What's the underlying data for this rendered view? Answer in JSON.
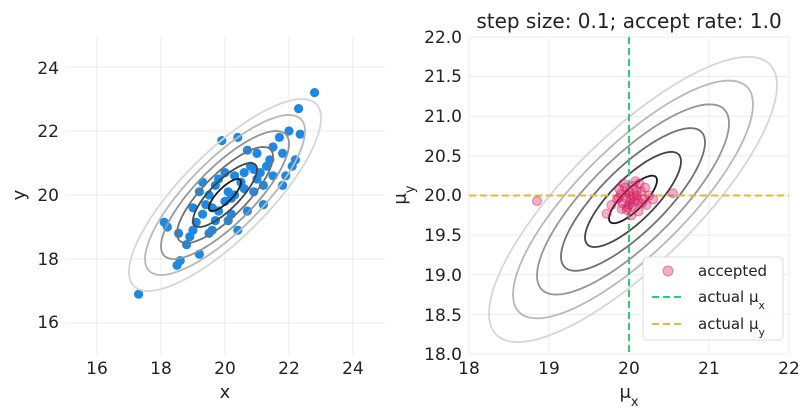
{
  "colors": {
    "scatter": "#1e88e5",
    "accepted": "#d81b60",
    "actual_mu_x": "#2ecc71",
    "actual_mu_y": "#e6b830",
    "contour_levels": [
      "#1a1a1a",
      "#444444",
      "#707070",
      "#959595",
      "#b8b8b8",
      "#d6d6d6"
    ]
  },
  "chart_data": [
    {
      "type": "scatter",
      "title": "",
      "xlabel": "x",
      "ylabel": "y",
      "xlim": [
        15,
        25
      ],
      "ylim": [
        15,
        25
      ],
      "xticks": [
        16,
        18,
        20,
        22,
        24
      ],
      "yticks": [
        16,
        18,
        20,
        22,
        24
      ],
      "xtick_labels": [
        "16",
        "18",
        "20",
        "22",
        "24"
      ],
      "ytick_labels": [
        "16",
        "18",
        "20",
        "22",
        "24"
      ],
      "contours": {
        "center": [
          20,
          20
        ],
        "sd_x": 1,
        "sd_y": 1,
        "rho": 0.8,
        "levels": [
          0.5,
          1,
          1.5,
          2,
          2.5,
          3
        ]
      },
      "points": [
        [
          17.3,
          16.9
        ],
        [
          18.5,
          17.8
        ],
        [
          18.6,
          17.95
        ],
        [
          18.1,
          19.15
        ],
        [
          18.2,
          19.0
        ],
        [
          18.55,
          18.8
        ],
        [
          18.8,
          18.45
        ],
        [
          19.2,
          18.15
        ],
        [
          19.0,
          18.9
        ],
        [
          19.1,
          19.15
        ],
        [
          19.3,
          19.4
        ],
        [
          19.4,
          19.7
        ],
        [
          19.5,
          20.0
        ],
        [
          19.6,
          19.6
        ],
        [
          19.7,
          20.3
        ],
        [
          19.8,
          20.5
        ],
        [
          19.9,
          21.7
        ],
        [
          19.5,
          18.8
        ],
        [
          19.7,
          19.2
        ],
        [
          20.0,
          19.8
        ],
        [
          20.1,
          20.1
        ],
        [
          20.2,
          19.9
        ],
        [
          20.3,
          20.6
        ],
        [
          20.4,
          21.8
        ],
        [
          20.5,
          20.4
        ],
        [
          20.6,
          20.2
        ],
        [
          20.7,
          19.5
        ],
        [
          20.8,
          20.9
        ],
        [
          20.9,
          20.8
        ],
        [
          21.0,
          20.5
        ],
        [
          21.1,
          20.7
        ],
        [
          21.2,
          19.7
        ],
        [
          21.3,
          20.9
        ],
        [
          21.4,
          21.1
        ],
        [
          21.5,
          20.6
        ],
        [
          21.7,
          21.8
        ],
        [
          21.8,
          21.3
        ],
        [
          22.0,
          22.0
        ],
        [
          22.1,
          20.9
        ],
        [
          22.2,
          21.1
        ],
        [
          22.3,
          22.7
        ],
        [
          22.35,
          21.9
        ],
        [
          22.8,
          23.2
        ],
        [
          21.9,
          20.6
        ],
        [
          21.8,
          20.3
        ],
        [
          20.4,
          18.9
        ],
        [
          20.1,
          19.2
        ],
        [
          19.2,
          20.1
        ],
        [
          19.0,
          19.6
        ],
        [
          20.3,
          20.0
        ],
        [
          20.6,
          20.7
        ],
        [
          21.0,
          21.3
        ],
        [
          19.8,
          19.5
        ],
        [
          20.9,
          20.1
        ],
        [
          18.9,
          18.7
        ],
        [
          19.6,
          18.9
        ],
        [
          20.7,
          21.4
        ],
        [
          21.5,
          21.5
        ],
        [
          19.3,
          20.4
        ],
        [
          20.0,
          20.7
        ],
        [
          20.2,
          19.4
        ],
        [
          21.2,
          20.3
        ]
      ]
    },
    {
      "type": "scatter",
      "title": "step size: 0.1; accept rate: 1.0",
      "xlabel": "μ_x",
      "ylabel": "μ_y",
      "xlim": [
        18,
        22
      ],
      "ylim": [
        18,
        22
      ],
      "xticks": [
        18,
        19,
        20,
        21,
        22
      ],
      "yticks": [
        18.0,
        18.5,
        19.0,
        19.5,
        20.0,
        20.5,
        21.0,
        21.5,
        22.0
      ],
      "xtick_labels": [
        "18",
        "19",
        "20",
        "21",
        "22"
      ],
      "ytick_labels": [
        "18.0",
        "18.5",
        "19.0",
        "19.5",
        "20.0",
        "20.5",
        "21.0",
        "21.5",
        "22.0"
      ],
      "contours": {
        "center": [
          20.05,
          19.95
        ],
        "sd_x": 0.6,
        "sd_y": 0.6,
        "rho": 0.8,
        "levels": [
          0.5,
          1,
          1.5,
          2,
          2.5,
          3
        ]
      },
      "reference_lines": {
        "actual_mu_x": 20.0,
        "actual_mu_y": 20.0
      },
      "legend": {
        "position": "bottom-right",
        "entries": [
          "accepted",
          "actual $\\mu_x$",
          "actual $\\mu_y$"
        ],
        "entry_labels": [
          "accepted",
          "actual μx",
          "actual μy"
        ]
      },
      "accepted": [
        [
          18.85,
          19.93
        ],
        [
          20.55,
          20.03
        ],
        [
          19.72,
          19.77
        ],
        [
          19.78,
          19.88
        ],
        [
          19.85,
          19.95
        ],
        [
          19.9,
          20.02
        ],
        [
          19.92,
          19.9
        ],
        [
          19.95,
          20.1
        ],
        [
          19.98,
          19.85
        ],
        [
          20.0,
          20.05
        ],
        [
          20.02,
          19.95
        ],
        [
          20.05,
          20.12
        ],
        [
          20.07,
          19.92
        ],
        [
          20.1,
          20.0
        ],
        [
          20.12,
          19.8
        ],
        [
          20.15,
          20.05
        ],
        [
          20.18,
          19.95
        ],
        [
          20.2,
          20.1
        ],
        [
          20.22,
          19.88
        ],
        [
          19.88,
          20.08
        ],
        [
          19.93,
          20.15
        ],
        [
          20.03,
          19.75
        ],
        [
          19.97,
          19.82
        ],
        [
          20.08,
          20.18
        ],
        [
          20.25,
          20.0
        ],
        [
          19.96,
          19.97
        ],
        [
          20.01,
          20.0
        ],
        [
          20.06,
          19.99
        ],
        [
          20.11,
          19.93
        ],
        [
          19.91,
          19.83
        ],
        [
          20.16,
          19.9
        ],
        [
          20.3,
          19.95
        ],
        [
          20.13,
          20.15
        ],
        [
          20.0,
          19.88
        ],
        [
          19.87,
          19.97
        ],
        [
          20.04,
          19.87
        ],
        [
          20.09,
          20.06
        ]
      ]
    }
  ]
}
